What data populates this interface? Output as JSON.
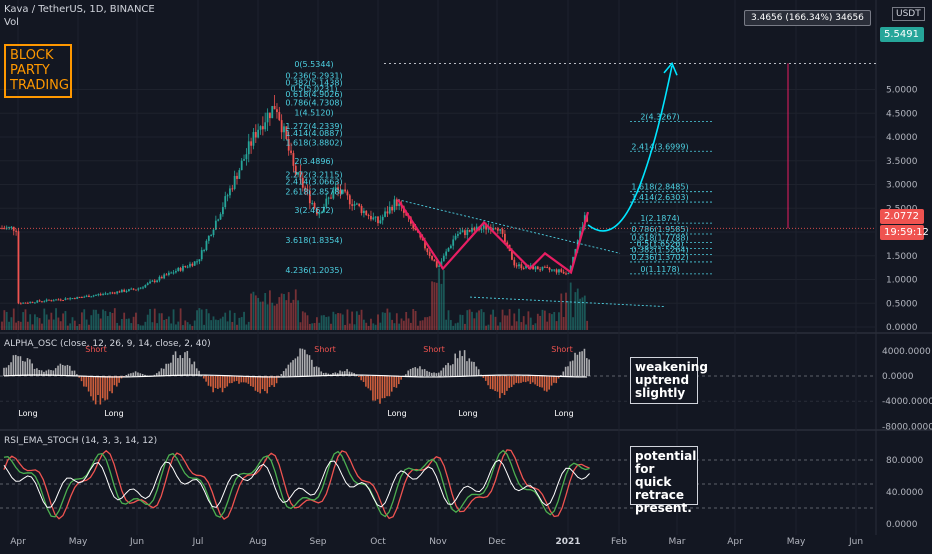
{
  "header": {
    "symbol": "Kava / TetherUS, 1D, BINANCE",
    "volume_label": "Vol"
  },
  "branding": {
    "line1": "BLOCK",
    "line2": "PARTY",
    "line3": "TRADING"
  },
  "currency_label": "USDT",
  "measure_label": "3.4656 (166.34%) 34656",
  "notes": {
    "oscillator": [
      "weakening",
      "uptrend",
      "slightly"
    ],
    "stoch": [
      "potential",
      "for quick",
      "retrace",
      "present."
    ]
  },
  "price_tags": {
    "target": "5.5491",
    "current": "2.0772",
    "countdown": "19:59:12"
  },
  "colors": {
    "up": "#26a69a",
    "down": "#ef5350",
    "pattern": "#e91e63",
    "projection": "#00e5ff",
    "fib": "#4dd0e1",
    "orange": "#ff9800"
  },
  "chart_data": [
    {
      "type": "candlestick",
      "title": "Kava / TetherUS, 1D, BINANCE",
      "x_ticks": [
        "Apr",
        "May",
        "Jun",
        "Jul",
        "Aug",
        "Sep",
        "Oct",
        "Nov",
        "Dec",
        "2021",
        "Feb",
        "Mar",
        "Apr",
        "May",
        "Jun"
      ],
      "y_ticks": [
        "0.0000",
        "0.5000",
        "1.0000",
        "1.5000",
        "2.0000",
        "2.5000",
        "3.0000",
        "3.5000",
        "4.0000",
        "4.5000",
        "5.0000"
      ],
      "ylim": [
        0,
        5.6
      ],
      "grid": true,
      "close_path": [
        [
          "Apr",
          0.5
        ],
        [
          "May",
          0.62
        ],
        [
          "Jun",
          0.8
        ],
        [
          "Jul",
          1.4
        ],
        [
          "Aug",
          4.2
        ],
        [
          "Aug",
          4.7
        ],
        [
          "Aug",
          3.3
        ],
        [
          "Sep",
          2.4
        ],
        [
          "Sep",
          2.9
        ],
        [
          "Oct",
          2.2
        ],
        [
          "Oct",
          2.65
        ],
        [
          "Nov",
          1.25
        ],
        [
          "Nov",
          1.95
        ],
        [
          "Dec",
          2.15
        ],
        [
          "Dec",
          1.3
        ],
        [
          "2021",
          1.15
        ],
        [
          "2021",
          2.4
        ],
        [
          "2021",
          2.08
        ]
      ],
      "fib_left": [
        {
          "label": "0(5.5344)",
          "value": 5.5344
        },
        {
          "label": "0.236(5.2931)",
          "value": 5.2931
        },
        {
          "label": "0.382(5.1438)",
          "value": 5.1438
        },
        {
          "label": "0.5(5.0231)",
          "value": 5.0231
        },
        {
          "label": "0.618(4.9026)",
          "value": 4.9026
        },
        {
          "label": "0.786(4.7308)",
          "value": 4.7308
        },
        {
          "label": "1(4.5120)",
          "value": 4.512
        },
        {
          "label": "1.272(4.2339)",
          "value": 4.2339
        },
        {
          "label": "1.414(4.0887)",
          "value": 4.0887
        },
        {
          "label": "1.618(3.8802)",
          "value": 3.8802
        },
        {
          "label": "2(3.4896)",
          "value": 3.4896
        },
        {
          "label": "2.272(3.2115)",
          "value": 3.2115
        },
        {
          "label": "2.414(3.0663)",
          "value": 3.0663
        },
        {
          "label": "2.618(2.8578)",
          "value": 2.8578
        },
        {
          "label": "3(2.4672)",
          "value": 2.4672
        },
        {
          "label": "3.618(1.8354)",
          "value": 1.8354
        },
        {
          "label": "4.236(1.2035)",
          "value": 1.2035
        }
      ],
      "fib_right": [
        {
          "label": "2(4.3267)",
          "value": 4.3267
        },
        {
          "label": "2.414(3.6999)",
          "value": 3.6999
        },
        {
          "label": "1.618(2.8485)",
          "value": 2.8485
        },
        {
          "label": "1.414(2.6303)",
          "value": 2.6303
        },
        {
          "label": "1(2.1874)",
          "value": 2.1874
        },
        {
          "label": "0.786(1.9585)",
          "value": 1.9585
        },
        {
          "label": "0.618(1.7788)",
          "value": 1.7788
        },
        {
          "label": "0.5(1.6526)",
          "value": 1.6526
        },
        {
          "label": "0.382(1.5264)",
          "value": 1.5264
        },
        {
          "label": "0.236(1.3702)",
          "value": 1.3702
        },
        {
          "label": "0(1.1178)",
          "value": 1.1178
        }
      ],
      "target": 5.5491,
      "current": 2.0772
    },
    {
      "type": "bar",
      "title": "ALPHA_OSC (close, 12, 26, 9, 14, close, 2, 40)",
      "y_ticks": [
        "4000.0000",
        "0.0000",
        "-4000.0000",
        "-8000.0000"
      ],
      "ylim": [
        -8000,
        6000
      ],
      "signals_short": [
        "Short",
        "Short",
        "Short",
        "Short"
      ],
      "signals_long": [
        "Long",
        "Long",
        "Long",
        "Long",
        "Long"
      ]
    },
    {
      "type": "line",
      "title": "RSI_EMA_STOCH (14, 3, 3, 14, 12)",
      "y_ticks": [
        "80.0000",
        "40.0000",
        "0.0000"
      ],
      "ylim": [
        0,
        100
      ],
      "levels": [
        80,
        50,
        20
      ]
    }
  ]
}
